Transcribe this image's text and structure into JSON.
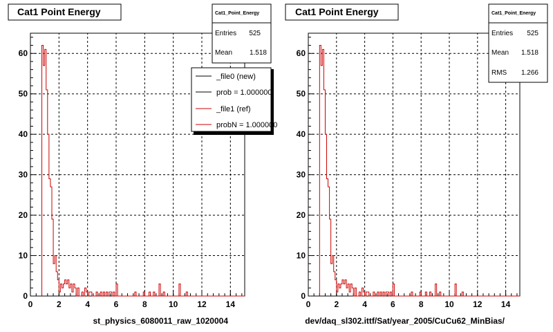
{
  "chart_data": [
    {
      "type": "bar",
      "title": "Cat1 Point Energy",
      "xlabel": "st_physics_6080011_raw_1020004",
      "ylabel": "",
      "xlim": [
        0,
        15
      ],
      "ylim": [
        0,
        65
      ],
      "xticks": [
        "0",
        "2",
        "4",
        "6",
        "8",
        "10",
        "12",
        "14"
      ],
      "yticks": [
        "0",
        "10",
        "20",
        "30",
        "40",
        "50",
        "60"
      ],
      "grid": true,
      "bin_width": 0.1,
      "x_start": 0.8,
      "series_color": "#cc0000",
      "values": [
        62,
        57,
        61,
        51,
        40,
        29,
        27,
        19,
        8,
        10,
        6,
        4,
        1,
        3,
        2,
        3,
        4,
        3,
        4,
        2,
        3,
        1,
        3,
        2,
        0,
        2,
        0,
        0,
        1,
        0,
        2,
        1,
        0,
        1,
        1,
        0,
        0,
        0,
        1,
        0,
        0,
        1,
        0,
        1,
        0,
        1,
        0,
        1,
        1,
        0,
        1,
        0,
        0,
        0,
        0
      ],
      "extra_points": [
        [
          6.0,
          3
        ],
        [
          7.3,
          1
        ],
        [
          7.9,
          1
        ],
        [
          8.3,
          1
        ],
        [
          8.6,
          1
        ],
        [
          9.0,
          3
        ],
        [
          9.3,
          1
        ],
        [
          10.4,
          3
        ],
        [
          10.9,
          1
        ]
      ],
      "stats": {
        "title": "Cat1_Point_Energy",
        "entries_label": "Entries",
        "entries_value": "525",
        "mean_label": "Mean",
        "mean_value": "1.518"
      },
      "legend": [
        {
          "label": "_file0 (new)",
          "color": "#000000"
        },
        {
          "label": "prob = 1.000000",
          "color": "#000000"
        },
        {
          "label": "_file1 (ref)",
          "color": "#cc0000"
        },
        {
          "label": "probN = 1.000000",
          "color": "#cc0000"
        }
      ]
    },
    {
      "type": "bar",
      "title": "Cat1 Point Energy",
      "xlabel": "dev/daq_sl302.ittf/Sat/year_2005/CuCu62_MinBias/",
      "ylabel": "",
      "xlim": [
        0,
        15
      ],
      "ylim": [
        0,
        65
      ],
      "xticks": [
        "0",
        "2",
        "4",
        "6",
        "8",
        "10",
        "12",
        "14"
      ],
      "yticks": [
        "0",
        "10",
        "20",
        "30",
        "40",
        "50",
        "60"
      ],
      "grid": true,
      "bin_width": 0.1,
      "x_start": 0.8,
      "series_color": "#cc0000",
      "values": [
        62,
        57,
        61,
        51,
        40,
        29,
        27,
        19,
        8,
        10,
        6,
        4,
        1,
        3,
        2,
        3,
        4,
        3,
        4,
        2,
        3,
        1,
        3,
        2,
        0,
        2,
        0,
        0,
        1,
        0,
        2,
        1,
        0,
        1,
        1,
        0,
        0,
        0,
        1,
        0,
        0,
        1,
        0,
        1,
        0,
        1,
        0,
        1,
        1,
        0,
        1,
        0,
        0,
        0,
        0
      ],
      "extra_points": [
        [
          6.0,
          3
        ],
        [
          7.3,
          1
        ],
        [
          7.9,
          1
        ],
        [
          8.3,
          1
        ],
        [
          8.6,
          1
        ],
        [
          9.0,
          3
        ],
        [
          9.3,
          1
        ],
        [
          10.4,
          3
        ],
        [
          10.9,
          1
        ]
      ],
      "stats": {
        "title": "Cat1_Point_Energy",
        "entries_label": "Entries",
        "entries_value": "525",
        "mean_label": "Mean",
        "mean_value": "1.518",
        "rms_label": "RMS",
        "rms_value": "1.266"
      }
    }
  ]
}
